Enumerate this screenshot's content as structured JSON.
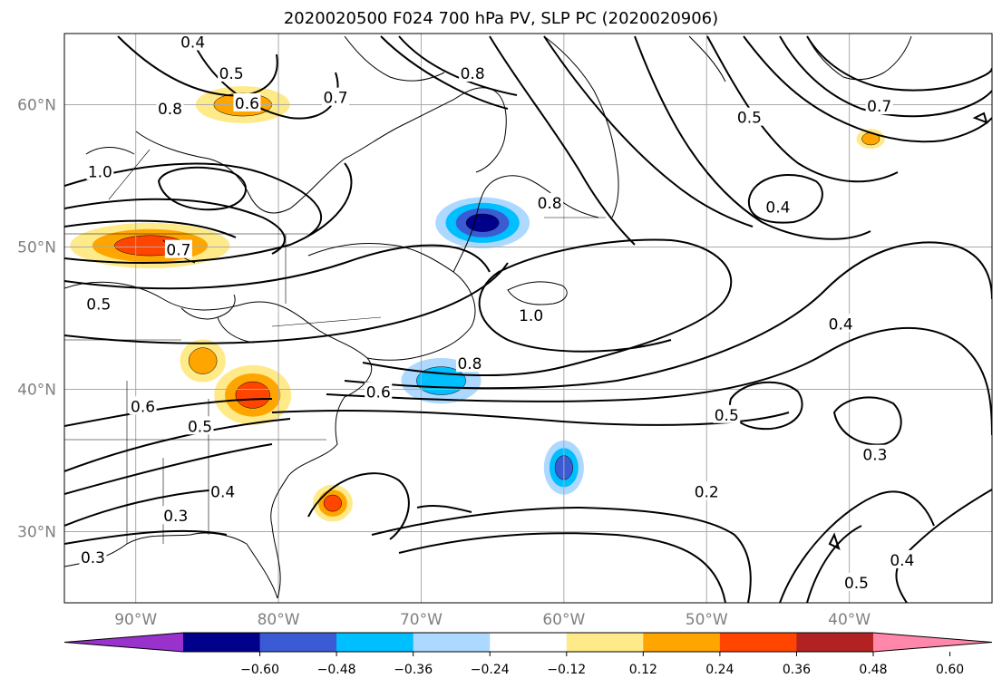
{
  "title": "2020020500 F024 700 hPa PV, SLP PC (2020020906)",
  "map": {
    "lon_range": [
      -95,
      -30
    ],
    "lat_range": [
      25,
      65
    ],
    "x_ticks": [
      "90°W",
      "80°W",
      "70°W",
      "60°W",
      "50°W",
      "40°W"
    ],
    "x_tick_values": [
      -90,
      -80,
      -70,
      -60,
      -50,
      -40
    ],
    "y_ticks": [
      "30°N",
      "40°N",
      "50°N",
      "60°N"
    ],
    "y_tick_values": [
      30,
      40,
      50,
      60
    ],
    "grid": true
  },
  "contour_labels": [
    {
      "text": "0.4",
      "lon": -86.0,
      "lat": 64.4
    },
    {
      "text": "0.5",
      "lon": -83.3,
      "lat": 62.2
    },
    {
      "text": "0.6",
      "lon": -82.2,
      "lat": 60.1
    },
    {
      "text": "0.7",
      "lon": -76.0,
      "lat": 60.5
    },
    {
      "text": "0.8",
      "lon": -66.4,
      "lat": 62.2
    },
    {
      "text": "0.8",
      "lon": -87.6,
      "lat": 59.7
    },
    {
      "text": "1.0",
      "lon": -92.5,
      "lat": 55.3
    },
    {
      "text": "0.7",
      "lon": -87.0,
      "lat": 49.8
    },
    {
      "text": "0.8",
      "lon": -61.0,
      "lat": 53.1
    },
    {
      "text": "0.5",
      "lon": -47.0,
      "lat": 59.1
    },
    {
      "text": "0.7",
      "lon": -37.9,
      "lat": 59.9
    },
    {
      "text": "0.4",
      "lon": -45.0,
      "lat": 52.8
    },
    {
      "text": "1.0",
      "lon": -62.3,
      "lat": 45.2
    },
    {
      "text": "0.8",
      "lon": -66.6,
      "lat": 41.8
    },
    {
      "text": "0.6",
      "lon": -73.0,
      "lat": 39.8
    },
    {
      "text": "0.5",
      "lon": -92.6,
      "lat": 46.0
    },
    {
      "text": "0.6",
      "lon": -89.5,
      "lat": 38.8
    },
    {
      "text": "0.5",
      "lon": -85.5,
      "lat": 37.4
    },
    {
      "text": "0.4",
      "lon": -40.6,
      "lat": 44.6
    },
    {
      "text": "0.5",
      "lon": -48.6,
      "lat": 38.2
    },
    {
      "text": "0.3",
      "lon": -38.2,
      "lat": 35.4
    },
    {
      "text": "0.3",
      "lon": -87.2,
      "lat": 31.1
    },
    {
      "text": "0.4",
      "lon": -83.9,
      "lat": 32.8
    },
    {
      "text": "0.2",
      "lon": -50.0,
      "lat": 32.8
    },
    {
      "text": "0.4",
      "lon": -36.3,
      "lat": 28.0
    },
    {
      "text": "0.5",
      "lon": -39.5,
      "lat": 26.4
    },
    {
      "text": "0.3",
      "lon": -93.0,
      "lat": 28.2
    }
  ],
  "pv_shading": [
    {
      "name": "hudson-bay-max",
      "level": 0.24,
      "lon": -82.5,
      "lat": 60.0,
      "rlon": 3.3,
      "rlat": 1.3
    },
    {
      "name": "manitoba-max",
      "level": 0.36,
      "lon": -89.0,
      "lat": 50.1,
      "rlon": 5.6,
      "rlat": 1.6
    },
    {
      "name": "appalachian-max",
      "level": 0.36,
      "lon": -81.8,
      "lat": 39.6,
      "rlon": 2.7,
      "rlat": 2.1
    },
    {
      "name": "ohio-valley-max",
      "level": 0.24,
      "lon": -85.3,
      "lat": 42.0,
      "rlon": 1.6,
      "rlat": 1.5
    },
    {
      "name": "carolina-max",
      "level": 0.36,
      "lon": -76.2,
      "lat": 32.0,
      "rlon": 1.4,
      "rlat": 1.3
    },
    {
      "name": "labrador-min",
      "level": -0.48,
      "lon": -65.7,
      "lat": 51.7,
      "rlon": 3.3,
      "rlat": 1.8
    },
    {
      "name": "gulf-of-maine-min",
      "level": -0.24,
      "lon": -68.6,
      "lat": 40.6,
      "rlon": 2.8,
      "rlat": 1.6
    },
    {
      "name": "atlantic-min",
      "level": -0.36,
      "lon": -60.0,
      "lat": 34.5,
      "rlon": 1.4,
      "rlat": 1.9
    },
    {
      "name": "east-greenland-max",
      "level": 0.24,
      "lon": -38.5,
      "lat": 57.6,
      "rlon": 1.0,
      "rlat": 0.7
    }
  ],
  "colorbar": {
    "labels": [
      "−0.60",
      "−0.48",
      "−0.36",
      "−0.24",
      "−0.12",
      "0.12",
      "0.24",
      "0.36",
      "0.48",
      "0.60"
    ],
    "bounds": [
      -0.6,
      -0.48,
      -0.36,
      -0.24,
      -0.12,
      0.12,
      0.24,
      0.36,
      0.48,
      0.6
    ],
    "colors": [
      "#9932cc",
      "#00008b",
      "#3b5bd4",
      "#00bfff",
      "#add8ff",
      "#ffffff",
      "#ffea8a",
      "#ffa500",
      "#ff4500",
      "#b22222",
      "#ff88aa"
    ]
  }
}
